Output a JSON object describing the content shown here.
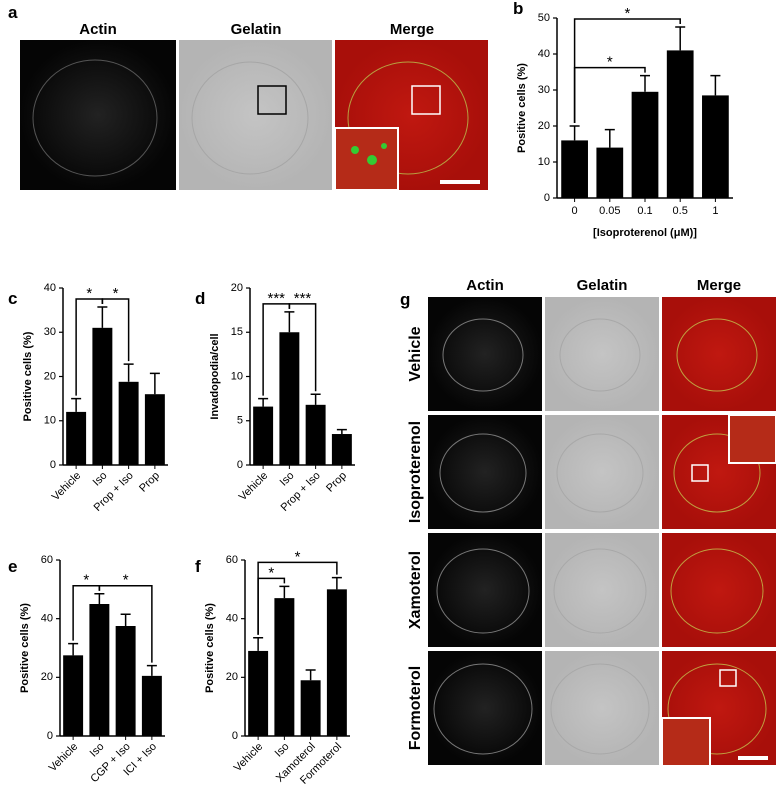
{
  "panel_a": {
    "label": "a",
    "columns": [
      "Actin",
      "Gelatin",
      "Merge"
    ]
  },
  "panel_g": {
    "label": "g",
    "columns": [
      "Actin",
      "Gelatin",
      "Merge"
    ],
    "rows": [
      "Vehicle",
      "Isoproterenol",
      "Xamoterol",
      "Formoterol"
    ]
  },
  "chart_data": [
    {
      "type": "bar",
      "label": "b",
      "ylabel": "Positive cells (%)",
      "xlabel": "[Isoproterenol (μM)]",
      "categories": [
        "0",
        "0.05",
        "0.1",
        "0.5",
        "1"
      ],
      "values": [
        16,
        14,
        29.5,
        41,
        28.5
      ],
      "errors": [
        4,
        5,
        4.5,
        6.5,
        5.5
      ],
      "color": "#000000",
      "ylim": [
        0,
        50
      ],
      "yticks": [
        0,
        10,
        20,
        30,
        40,
        50
      ],
      "significance": [
        {
          "from": 0,
          "to": 2,
          "label": "*"
        },
        {
          "from": 0,
          "to": 3,
          "label": "*"
        }
      ]
    },
    {
      "type": "bar",
      "label": "c",
      "ylabel": "Positive cells (%)",
      "categories": [
        "Vehicle",
        "Iso",
        "Prop + Iso",
        "Prop"
      ],
      "values": [
        12,
        31,
        18.8,
        16
      ],
      "errors": [
        3,
        4.7,
        4,
        4.7
      ],
      "color": "#000000",
      "ylim": [
        0,
        40
      ],
      "yticks": [
        0,
        10,
        20,
        30,
        40
      ],
      "significance": [
        {
          "from": 0,
          "to": 1,
          "label": "*"
        },
        {
          "from": 1,
          "to": 2,
          "label": "*"
        }
      ]
    },
    {
      "type": "bar",
      "label": "d",
      "ylabel": "Invadopodia/cell",
      "categories": [
        "Vehicle",
        "Iso",
        "Prop + Iso",
        "Prop"
      ],
      "values": [
        6.6,
        15,
        6.8,
        3.5
      ],
      "errors": [
        0.9,
        2.3,
        1.2,
        0.5
      ],
      "color": "#000000",
      "ylim": [
        0,
        20
      ],
      "yticks": [
        0,
        5,
        10,
        15,
        20
      ],
      "significance": [
        {
          "from": 0,
          "to": 1,
          "label": "***"
        },
        {
          "from": 1,
          "to": 2,
          "label": "***"
        }
      ]
    },
    {
      "type": "bar",
      "label": "e",
      "ylabel": "Positive cells (%)",
      "categories": [
        "Vehicle",
        "Iso",
        "CGP + Iso",
        "ICI + Iso"
      ],
      "values": [
        27.5,
        45,
        37.5,
        20.5
      ],
      "errors": [
        4,
        3.5,
        4,
        3.5
      ],
      "color": "#000000",
      "ylim": [
        0,
        60
      ],
      "yticks": [
        0,
        20,
        40,
        60
      ],
      "significance": [
        {
          "from": 0,
          "to": 1,
          "label": "*"
        },
        {
          "from": 1,
          "to": 3,
          "label": "*"
        }
      ]
    },
    {
      "type": "bar",
      "label": "f",
      "ylabel": "Positive cells (%)",
      "categories": [
        "Vehicle",
        "Iso",
        "Xamoterol",
        "Formoterol"
      ],
      "values": [
        29,
        47,
        19,
        50
      ],
      "errors": [
        4.5,
        4,
        3.5,
        4
      ],
      "color": "#000000",
      "ylim": [
        0,
        60
      ],
      "yticks": [
        0,
        20,
        40,
        60
      ],
      "significance": [
        {
          "from": 0,
          "to": 1,
          "label": "*"
        },
        {
          "from": 0,
          "to": 3,
          "label": "*"
        }
      ]
    }
  ]
}
